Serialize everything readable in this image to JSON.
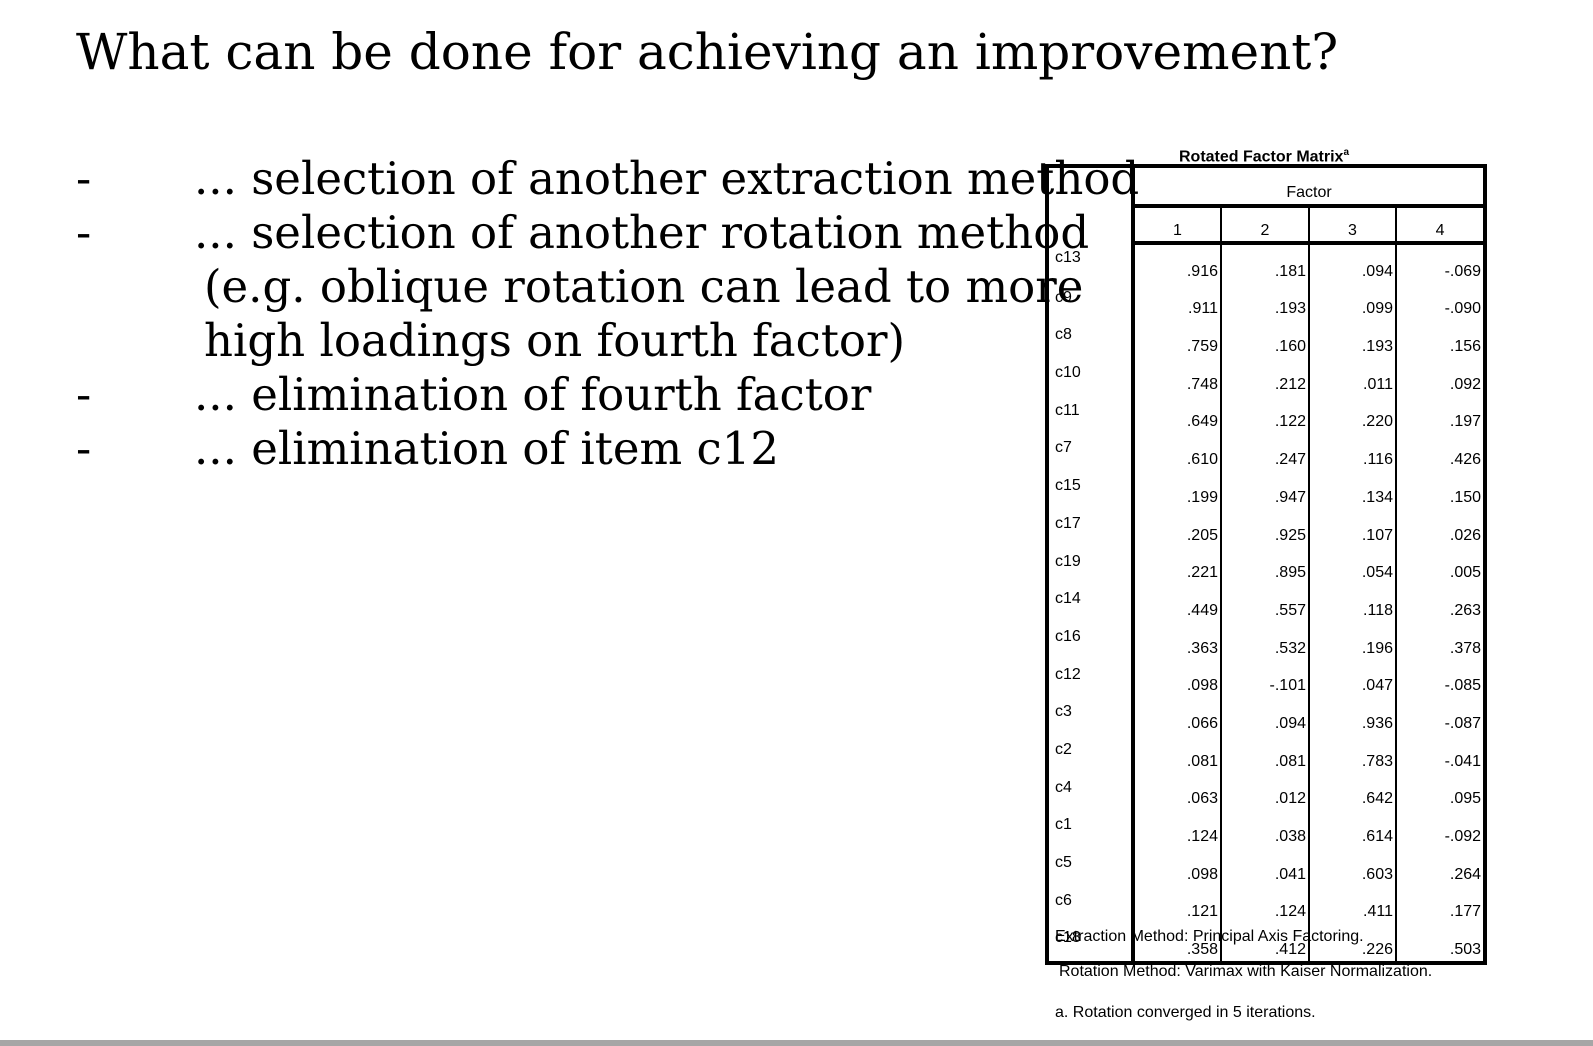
{
  "title": "What can be done for achieving an improvement?",
  "bullets": [
    {
      "dash": "-",
      "lines": [
        "... selection of another extraction method"
      ]
    },
    {
      "dash": "-",
      "lines": [
        "... selection of another rotation method",
        "(e.g. oblique rotation can lead to more",
        "high loadings on fourth factor)"
      ]
    },
    {
      "dash": "-",
      "lines": [
        "... elimination of fourth factor"
      ]
    },
    {
      "dash": "-",
      "lines": [
        "... elimination of item c12"
      ]
    }
  ],
  "table": {
    "caption": "Rotated Factor Matrix",
    "caption_sup": "a",
    "factor_header": "Factor",
    "columns": [
      "1",
      "2",
      "3",
      "4"
    ],
    "rows": [
      {
        "label": "c13",
        "values": [
          ".916",
          ".181",
          ".094",
          "-.069"
        ]
      },
      {
        "label": "c9",
        "values": [
          ".911",
          ".193",
          ".099",
          "-.090"
        ]
      },
      {
        "label": "c8",
        "values": [
          ".759",
          ".160",
          ".193",
          ".156"
        ]
      },
      {
        "label": "c10",
        "values": [
          ".748",
          ".212",
          ".011",
          ".092"
        ]
      },
      {
        "label": "c11",
        "values": [
          ".649",
          ".122",
          ".220",
          ".197"
        ]
      },
      {
        "label": "c7",
        "values": [
          ".610",
          ".247",
          ".116",
          ".426"
        ]
      },
      {
        "label": "c15",
        "values": [
          ".199",
          ".947",
          ".134",
          ".150"
        ]
      },
      {
        "label": "c17",
        "values": [
          ".205",
          ".925",
          ".107",
          ".026"
        ]
      },
      {
        "label": "c19",
        "values": [
          ".221",
          ".895",
          ".054",
          ".005"
        ]
      },
      {
        "label": "c14",
        "values": [
          ".449",
          ".557",
          ".118",
          ".263"
        ]
      },
      {
        "label": "c16",
        "values": [
          ".363",
          ".532",
          ".196",
          ".378"
        ]
      },
      {
        "label": "c12",
        "values": [
          ".098",
          "-.101",
          ".047",
          "-.085"
        ]
      },
      {
        "label": "c3",
        "values": [
          ".066",
          ".094",
          ".936",
          "-.087"
        ]
      },
      {
        "label": "c2",
        "values": [
          ".081",
          ".081",
          ".783",
          "-.041"
        ]
      },
      {
        "label": "c4",
        "values": [
          ".063",
          ".012",
          ".642",
          ".095"
        ]
      },
      {
        "label": "c1",
        "values": [
          ".124",
          ".038",
          ".614",
          "-.092"
        ]
      },
      {
        "label": "c5",
        "values": [
          ".098",
          ".041",
          ".603",
          ".264"
        ]
      },
      {
        "label": "c6",
        "values": [
          ".121",
          ".124",
          ".411",
          ".177"
        ]
      },
      {
        "label": "c18",
        "values": [
          ".358",
          ".412",
          ".226",
          ".503"
        ]
      }
    ],
    "footnotes": [
      "Extraction Method: Principal Axis Factoring.",
      "Rotation Method: Varimax with Kaiser Normalization.",
      "a. Rotation converged in 5 iterations."
    ]
  }
}
